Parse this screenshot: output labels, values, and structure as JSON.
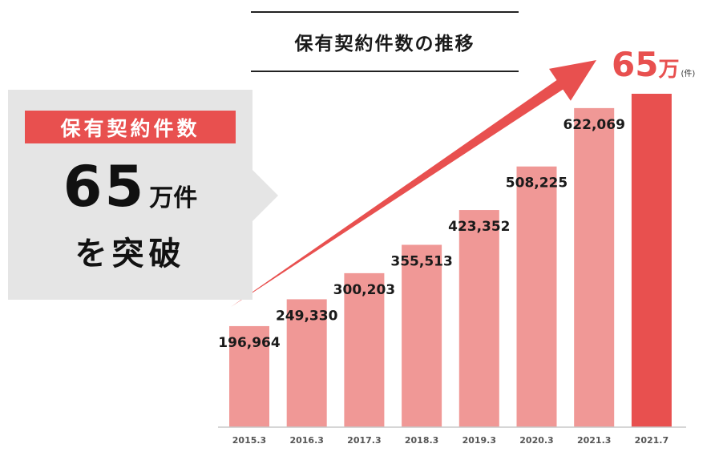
{
  "title": "保有契約件数の推移",
  "callout": {
    "tag": "保有契約件数",
    "number": "65",
    "unit": "万件",
    "subtext": "を突破"
  },
  "highlight": {
    "number": "65",
    "unit": "万",
    "sub": "(件)"
  },
  "colors": {
    "bar": "#f09896",
    "bar_highlight": "#e8504f",
    "arrow": "#e8504f",
    "callout_bg": "#e5e5e5"
  },
  "chart_data": {
    "type": "bar",
    "categories": [
      "2015.3",
      "2016.3",
      "2017.3",
      "2018.3",
      "2019.3",
      "2020.3",
      "2021.3",
      "2021.7"
    ],
    "values": [
      196964,
      249330,
      300203,
      355513,
      423352,
      508225,
      622069,
      650000
    ],
    "data_labels": [
      "196,964",
      "249,330",
      "300,203",
      "355,513",
      "423,352",
      "508,225",
      "622,069",
      ""
    ],
    "ylim": [
      0,
      650000
    ],
    "grid": false,
    "legend": "none"
  }
}
